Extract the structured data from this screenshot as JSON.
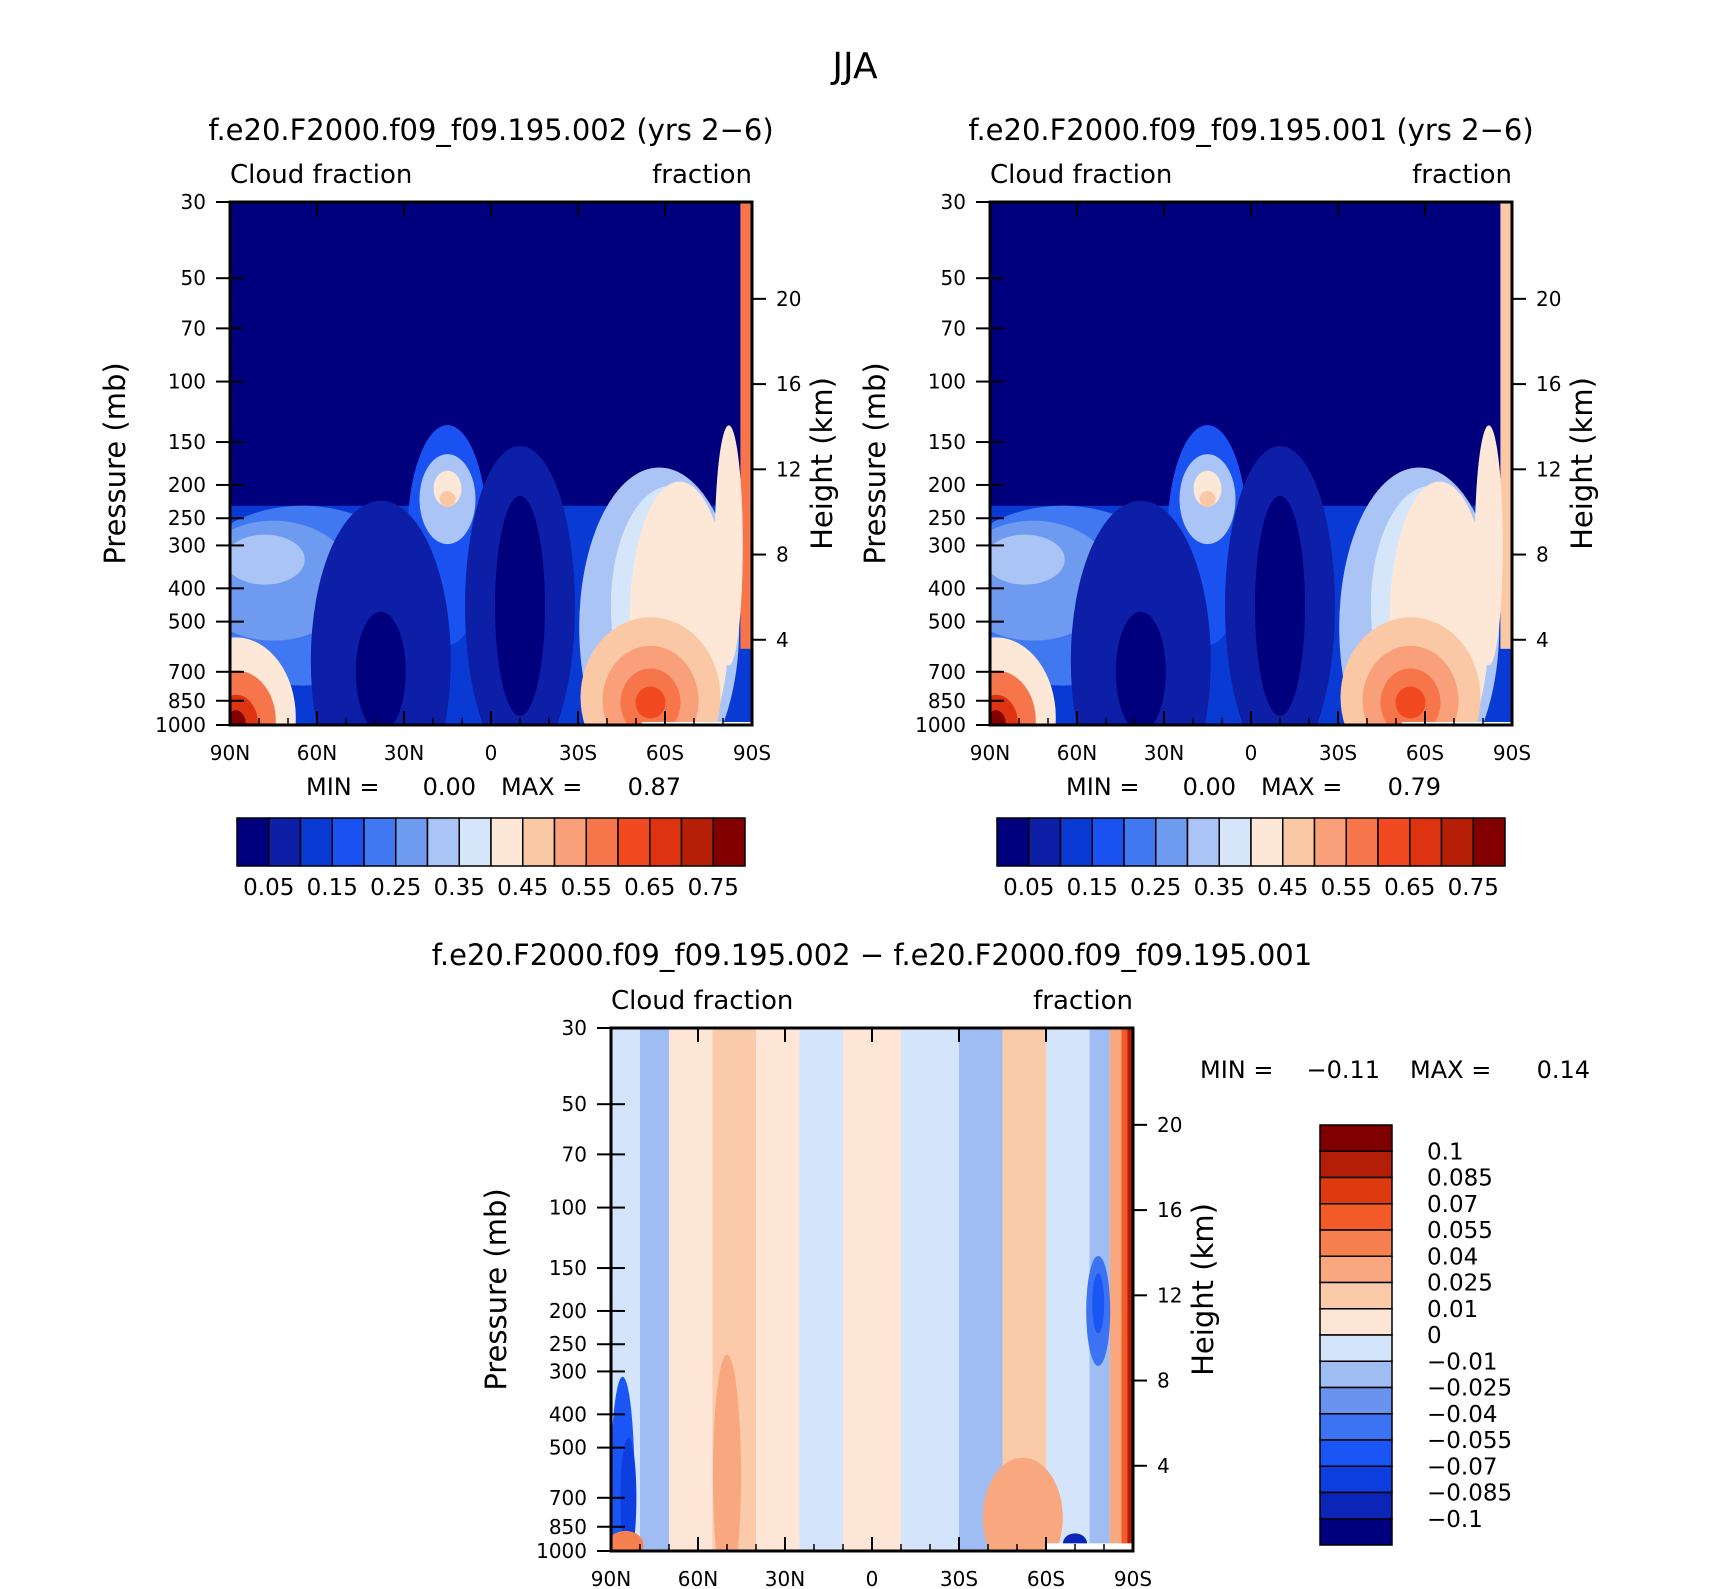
{
  "suptitle": "JJA",
  "colors": {
    "main": [
      "#00007f",
      "#0d1fa6",
      "#0a3ad4",
      "#1a52f2",
      "#3f78f0",
      "#6e9af0",
      "#a9c4f5",
      "#d5e6fb",
      "#fde8d8",
      "#fbc8a6",
      "#f9a07a",
      "#f6754b",
      "#f24a20",
      "#dd3310",
      "#b51f08",
      "#820000"
    ],
    "diff": [
      "#00007f",
      "#0a25b8",
      "#0d3ee0",
      "#1a56f5",
      "#3c73f2",
      "#6a93ef",
      "#a0bdf3",
      "#d4e5fb",
      "#fde6d6",
      "#fbcaa8",
      "#f9a77f",
      "#f6804f",
      "#f45a27",
      "#de3a10",
      "#b41e08",
      "#800000"
    ]
  },
  "panels": [
    {
      "title": "f.e20.F2000.f09_f09.195.002 (yrs 2−6)",
      "left_label": "Cloud fraction",
      "right_label": "fraction",
      "ylabel": "Pressure (mb)",
      "y2label": "Height (km)",
      "min_label": "MIN =",
      "min_value": "0.00",
      "max_label": "MAX =",
      "max_value": "0.87"
    },
    {
      "title": "f.e20.F2000.f09_f09.195.001 (yrs 2−6)",
      "left_label": "Cloud fraction",
      "right_label": "fraction",
      "ylabel": "Pressure (mb)",
      "y2label": "Height (km)",
      "min_label": "MIN =",
      "min_value": "0.00",
      "max_label": "MAX =",
      "max_value": "0.79"
    },
    {
      "title": "f.e20.F2000.f09_f09.195.002 − f.e20.F2000.f09_f09.195.001",
      "left_label": "Cloud fraction",
      "right_label": "fraction",
      "ylabel": "Pressure (mb)",
      "y2label": "Height (km)",
      "min_label": "MIN =",
      "min_value": "−0.11",
      "max_label": "MAX =",
      "max_value": "0.14"
    }
  ],
  "colorbar_main_labels": [
    "0.05",
    "0.15",
    "0.25",
    "0.35",
    "0.45",
    "0.55",
    "0.65",
    "0.75"
  ],
  "colorbar_diff_labels": [
    "0.1",
    "0.085",
    "0.07",
    "0.055",
    "0.04",
    "0.025",
    "0.01",
    "0",
    "−0.01",
    "−0.025",
    "−0.04",
    "−0.055",
    "−0.07",
    "−0.085",
    "−0.1"
  ],
  "chart_data": [
    {
      "type": "heatmap",
      "title": "f.e20.F2000.f09_f09.195.002 (yrs 2−6)",
      "xlabel": "",
      "ylabel": "Pressure (mb)",
      "y2label": "Height (km)",
      "x_ticks": [
        "90N",
        "60N",
        "30N",
        "0",
        "30S",
        "60S",
        "90S"
      ],
      "x_values": [
        90,
        60,
        30,
        0,
        -30,
        -60,
        -90
      ],
      "y_ticks": [
        30,
        50,
        70,
        100,
        150,
        200,
        250,
        300,
        400,
        500,
        700,
        850,
        1000
      ],
      "y2_ticks": [
        20,
        16,
        12,
        8,
        4
      ],
      "ylim": [
        1000,
        30
      ],
      "y_scale": "log",
      "levels": [
        0.05,
        0.1,
        0.15,
        0.2,
        0.25,
        0.3,
        0.35,
        0.4,
        0.45,
        0.5,
        0.55,
        0.6,
        0.65,
        0.7,
        0.75
      ],
      "min": 0.0,
      "max": 0.87,
      "features": [
        {
          "lat": 78,
          "p": 120,
          "value": 0.02
        },
        {
          "lat": 0,
          "p": 120,
          "value": 0.02
        },
        {
          "lat": -60,
          "p": 120,
          "value": 0.02
        },
        {
          "lat": 15,
          "p": 200,
          "value": 0.5
        },
        {
          "lat": -55,
          "p": 850,
          "value": 0.75
        },
        {
          "lat": 85,
          "p": 960,
          "value": 0.8
        },
        {
          "lat": -85,
          "p": 300,
          "value": 0.6
        },
        {
          "lat": 38,
          "p": 700,
          "value": 0.03
        },
        {
          "lat": -10,
          "p": 400,
          "value": 0.03
        },
        {
          "lat": 75,
          "p": 330,
          "value": 0.3
        }
      ]
    },
    {
      "type": "heatmap",
      "title": "f.e20.F2000.f09_f09.195.001 (yrs 2−6)",
      "xlabel": "",
      "ylabel": "Pressure (mb)",
      "y2label": "Height (km)",
      "x_ticks": [
        "90N",
        "60N",
        "30N",
        "0",
        "30S",
        "60S",
        "90S"
      ],
      "x_values": [
        90,
        60,
        30,
        0,
        -30,
        -60,
        -90
      ],
      "y_ticks": [
        30,
        50,
        70,
        100,
        150,
        200,
        250,
        300,
        400,
        500,
        700,
        850,
        1000
      ],
      "y2_ticks": [
        20,
        16,
        12,
        8,
        4
      ],
      "ylim": [
        1000,
        30
      ],
      "y_scale": "log",
      "levels": [
        0.05,
        0.1,
        0.15,
        0.2,
        0.25,
        0.3,
        0.35,
        0.4,
        0.45,
        0.5,
        0.55,
        0.6,
        0.65,
        0.7,
        0.75
      ],
      "min": 0.0,
      "max": 0.79,
      "features": [
        {
          "lat": 78,
          "p": 120,
          "value": 0.02
        },
        {
          "lat": 0,
          "p": 120,
          "value": 0.02
        },
        {
          "lat": -60,
          "p": 120,
          "value": 0.02
        },
        {
          "lat": 15,
          "p": 200,
          "value": 0.5
        },
        {
          "lat": -55,
          "p": 850,
          "value": 0.7
        },
        {
          "lat": 85,
          "p": 960,
          "value": 0.75
        },
        {
          "lat": -85,
          "p": 300,
          "value": 0.45
        },
        {
          "lat": 38,
          "p": 700,
          "value": 0.02
        },
        {
          "lat": -10,
          "p": 400,
          "value": 0.03
        },
        {
          "lat": 75,
          "p": 330,
          "value": 0.3
        }
      ]
    },
    {
      "type": "heatmap",
      "title": "f.e20.F2000.f09_f09.195.002 − f.e20.F2000.f09_f09.195.001",
      "xlabel": "",
      "ylabel": "Pressure (mb)",
      "y2label": "Height (km)",
      "x_ticks": [
        "90N",
        "60N",
        "30N",
        "0",
        "30S",
        "60S",
        "90S"
      ],
      "x_values": [
        90,
        60,
        30,
        0,
        -30,
        -60,
        -90
      ],
      "y_ticks": [
        30,
        50,
        70,
        100,
        150,
        200,
        250,
        300,
        400,
        500,
        700,
        850,
        1000
      ],
      "y2_ticks": [
        20,
        16,
        12,
        8,
        4
      ],
      "ylim": [
        1000,
        30
      ],
      "y_scale": "log",
      "levels": [
        -0.1,
        -0.085,
        -0.07,
        -0.055,
        -0.04,
        -0.025,
        -0.01,
        0,
        0.01,
        0.025,
        0.04,
        0.055,
        0.07,
        0.085,
        0.1
      ],
      "min": -0.11,
      "max": 0.14,
      "features": [
        {
          "lat": -88,
          "p": 300,
          "value": 0.1
        },
        {
          "lat": -77,
          "p": 200,
          "value": -0.05
        },
        {
          "lat": 86,
          "p": 650,
          "value": -0.05
        },
        {
          "lat": 50,
          "p": 600,
          "value": 0.02
        },
        {
          "lat": -52,
          "p": 800,
          "value": 0.025
        },
        {
          "lat": -70,
          "p": 950,
          "value": -0.1
        },
        {
          "lat": 85,
          "p": 960,
          "value": 0.05
        }
      ]
    }
  ]
}
